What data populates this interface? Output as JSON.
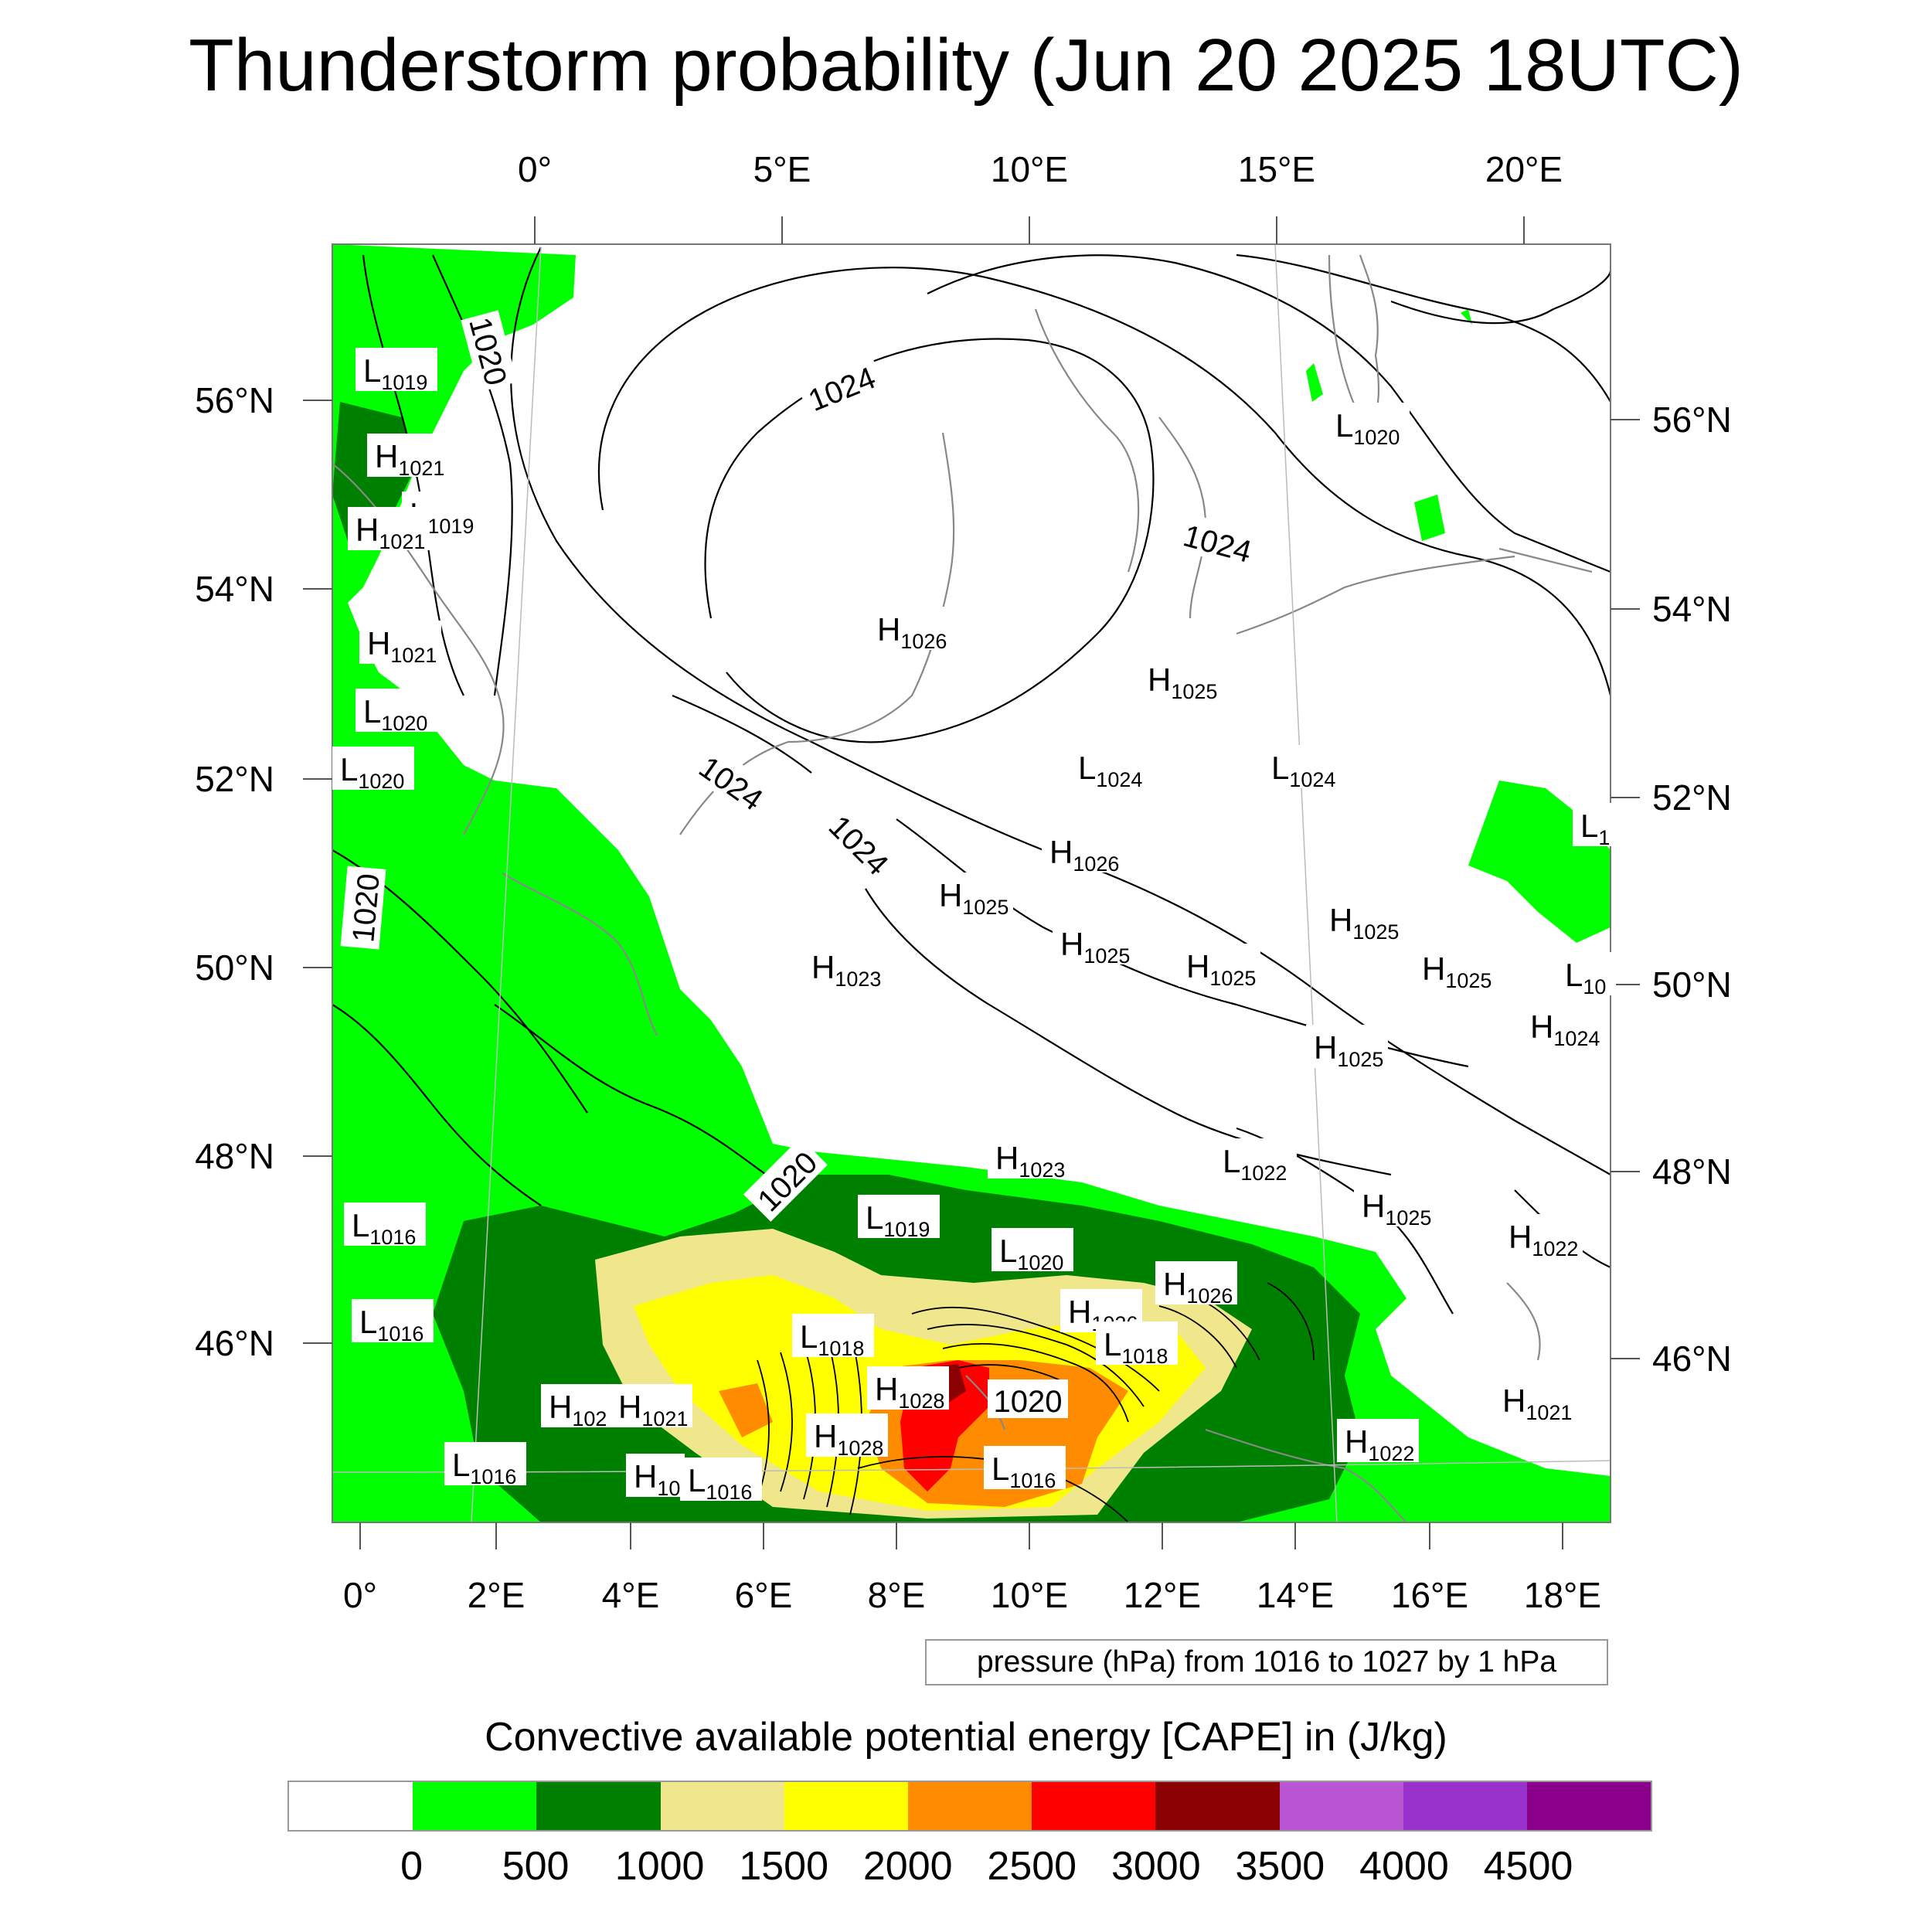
{
  "title": "Thunderstorm probability (Jun 20 2025 18UTC)",
  "map": {
    "top_lon_labels": [
      "0°",
      "5°E",
      "10°E",
      "15°E",
      "20°E"
    ],
    "bottom_lon_labels": [
      "0°",
      "2°E",
      "4°E",
      "6°E",
      "8°E",
      "10°E",
      "12°E",
      "14°E",
      "16°E",
      "18°E"
    ],
    "left_lat_labels": [
      "56°N",
      "54°N",
      "52°N",
      "50°N",
      "48°N",
      "46°N"
    ],
    "right_lat_labels": [
      "56°N",
      "54°N",
      "52°N",
      "50°N",
      "48°N",
      "46°N"
    ],
    "contour_labels": [
      "1020",
      "1024",
      "1024",
      "1024",
      "1024",
      "1020",
      "1020",
      "1020"
    ],
    "pressure_centers": [
      {
        "letter": "L",
        "value": "1019"
      },
      {
        "letter": "H",
        "value": "1021"
      },
      {
        "letter": "L",
        "value": "1019"
      },
      {
        "letter": "H",
        "value": "1021"
      },
      {
        "letter": "H",
        "value": "1021"
      },
      {
        "letter": "L",
        "value": "1020"
      },
      {
        "letter": "L",
        "value": "1020"
      },
      {
        "letter": "L",
        "value": "1016"
      },
      {
        "letter": "L",
        "value": "1016"
      },
      {
        "letter": "H",
        "value": "102"
      },
      {
        "letter": "H",
        "value": "1021"
      },
      {
        "letter": "L",
        "value": "1016"
      },
      {
        "letter": "H",
        "value": "10"
      },
      {
        "letter": "L",
        "value": "1016"
      },
      {
        "letter": "H",
        "value": "1026"
      },
      {
        "letter": "H",
        "value": "1025"
      },
      {
        "letter": "L",
        "value": "1024"
      },
      {
        "letter": "L",
        "value": "1024"
      },
      {
        "letter": "H",
        "value": "1026"
      },
      {
        "letter": "H",
        "value": "1025"
      },
      {
        "letter": "H",
        "value": "1023"
      },
      {
        "letter": "H",
        "value": "1025"
      },
      {
        "letter": "H",
        "value": "1025"
      },
      {
        "letter": "H",
        "value": "1025"
      },
      {
        "letter": "H",
        "value": "1025"
      },
      {
        "letter": "H",
        "value": "1025"
      },
      {
        "letter": "H",
        "value": "1024"
      },
      {
        "letter": "L",
        "value": "10"
      },
      {
        "letter": "L",
        "value": "1"
      },
      {
        "letter": "L",
        "value": "1020"
      },
      {
        "letter": "H",
        "value": "1023"
      },
      {
        "letter": "L",
        "value": "1022"
      },
      {
        "letter": "H",
        "value": "1025"
      },
      {
        "letter": "H",
        "value": "1022"
      },
      {
        "letter": "L",
        "value": "1019"
      },
      {
        "letter": "L",
        "value": "1020"
      },
      {
        "letter": "H",
        "value": "1026"
      },
      {
        "letter": "H",
        "value": "1026"
      },
      {
        "letter": "L",
        "value": "1018"
      },
      {
        "letter": "L",
        "value": "1018"
      },
      {
        "letter": "H",
        "value": "1028"
      },
      {
        "letter": "H",
        "value": "1028"
      },
      {
        "letter": "L",
        "value": "1016"
      },
      {
        "letter": "H",
        "value": "1021"
      },
      {
        "letter": "H",
        "value": "1022"
      }
    ]
  },
  "contour_note": "pressure (hPa) from 1016 to 1027 by 1 hPa",
  "colorbar": {
    "label": "Convective available potential energy [CAPE] in (J/kg)",
    "colors": [
      "#ffffff",
      "#00ff00",
      "#008000",
      "#f0e68c",
      "#ffff00",
      "#ff8c00",
      "#ff0000",
      "#8b0000",
      "#ba55d3",
      "#9932cc",
      "#8b008b"
    ],
    "ticks": [
      "0",
      "500",
      "1000",
      "1500",
      "2000",
      "2500",
      "3000",
      "3500",
      "4000",
      "4500"
    ]
  }
}
